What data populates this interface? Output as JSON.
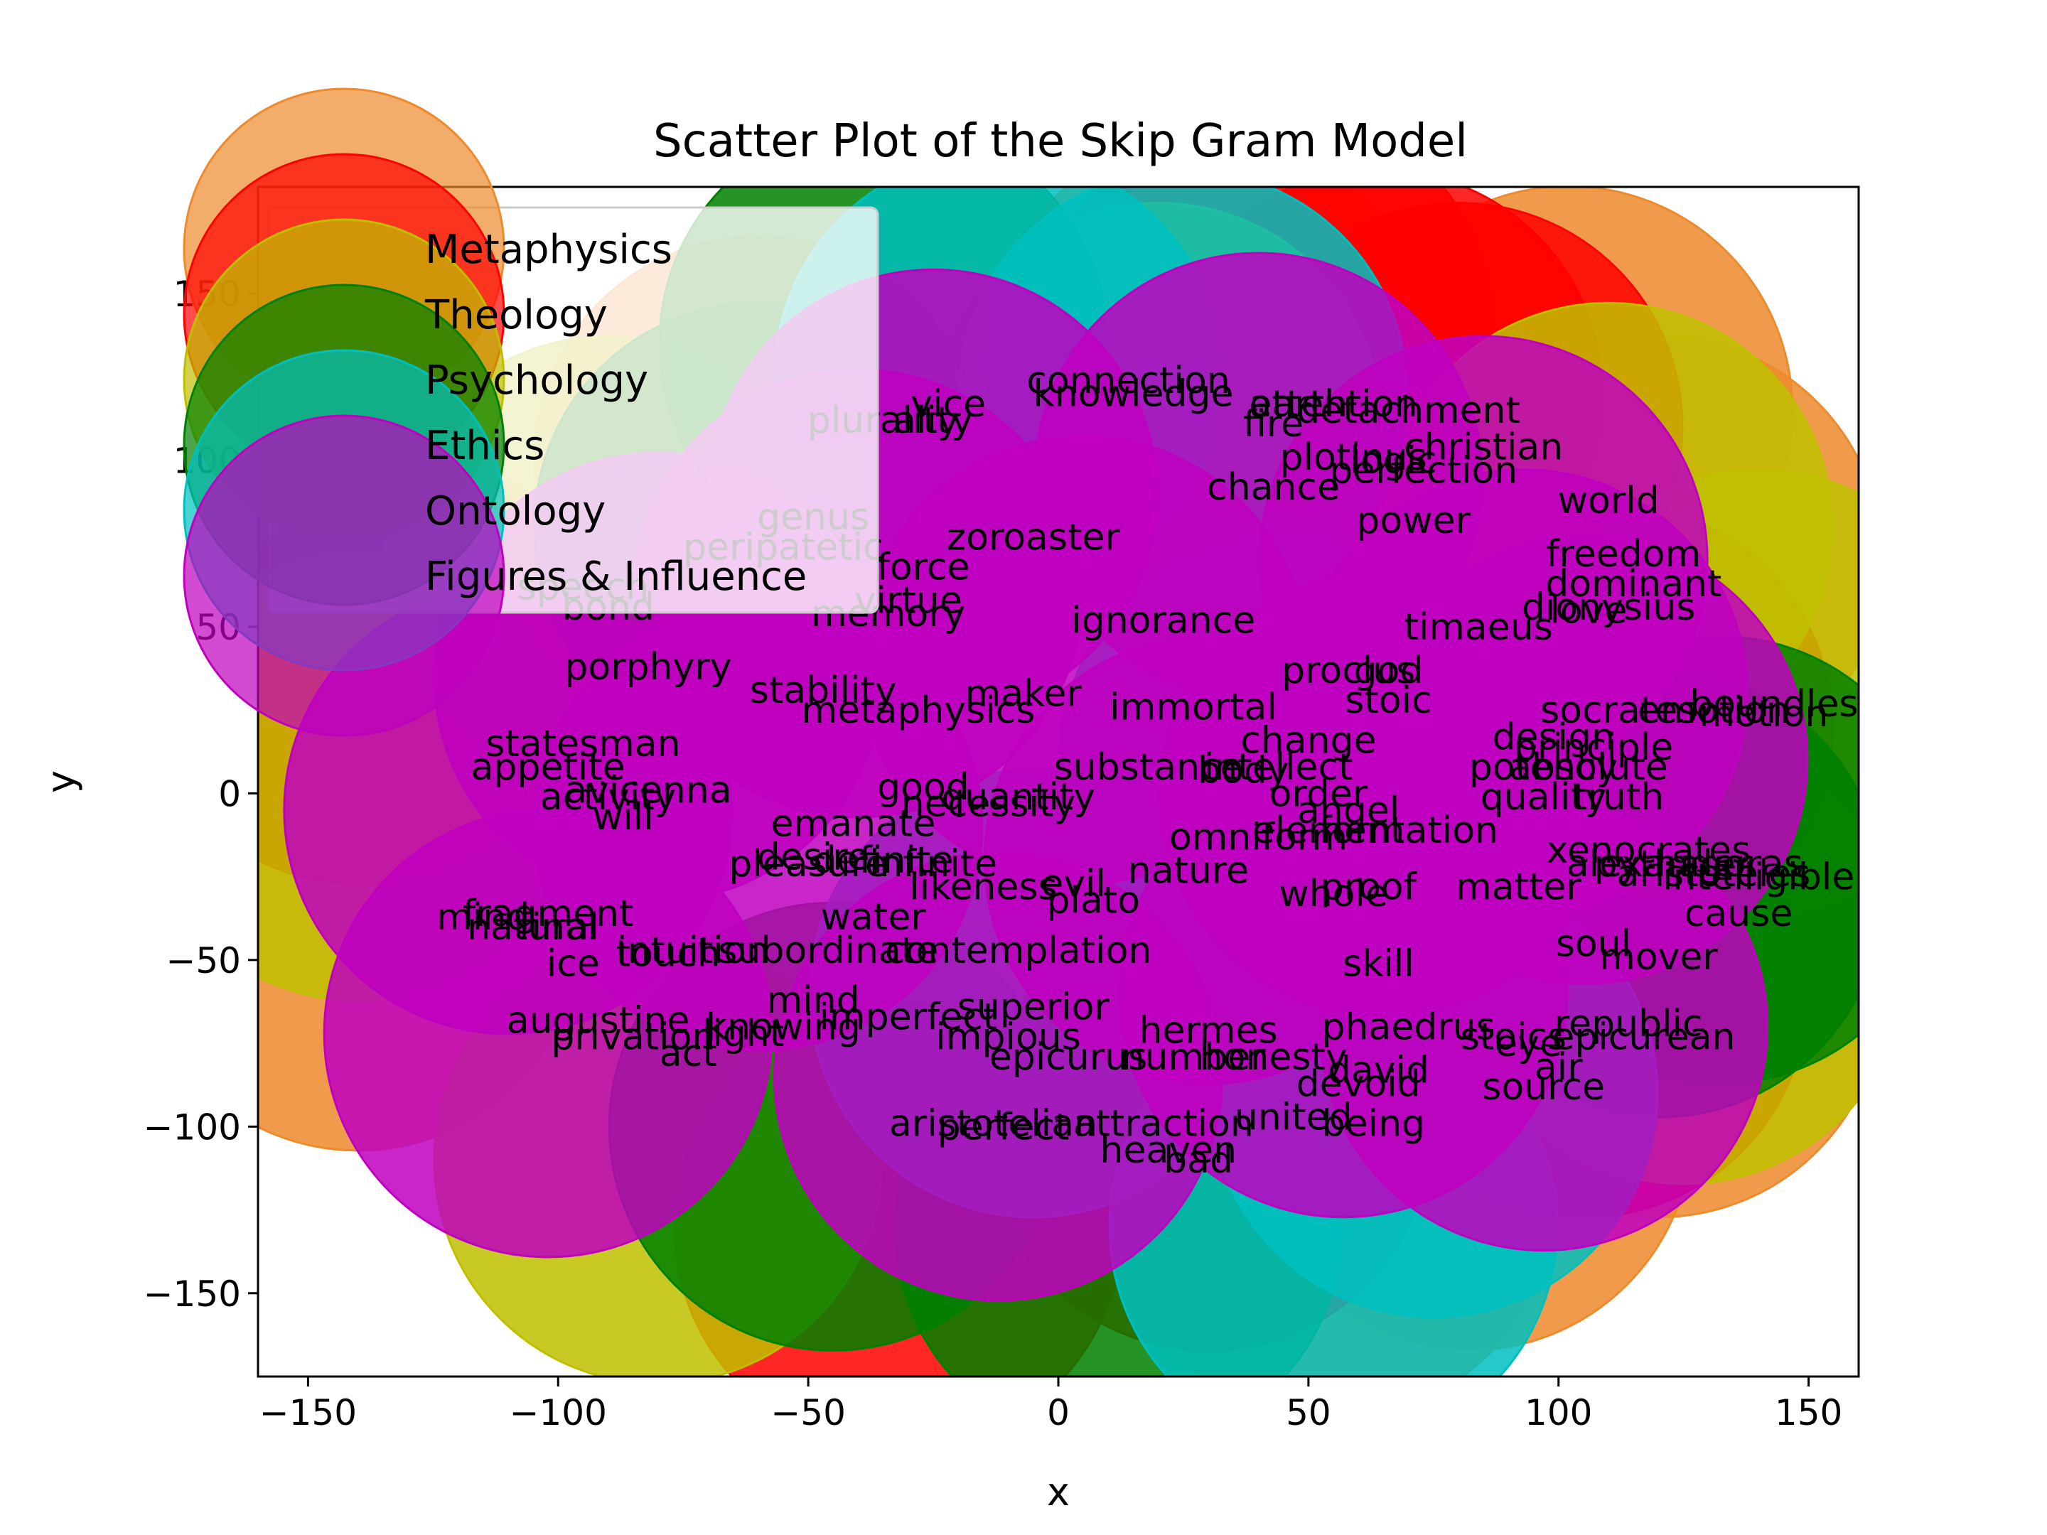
{
  "chart_data": {
    "type": "scatter",
    "title": "Scatter Plot of the Skip Gram Model",
    "xlabel": "x",
    "ylabel": "y",
    "xlim": [
      -160,
      160
    ],
    "ylim": [
      -175,
      182
    ],
    "xticks": [
      -150,
      -100,
      -50,
      0,
      50,
      100,
      150
    ],
    "yticks": [
      -150,
      -100,
      -50,
      0,
      50,
      100,
      150
    ],
    "xtick_labels": [
      "−150",
      "−100",
      "−50",
      "0",
      "50",
      "100",
      "150"
    ],
    "ytick_labels": [
      "−150",
      "−100",
      "−50",
      "0",
      "50",
      "100",
      "150"
    ],
    "grid": false,
    "legend_position": "upper-left",
    "series": [
      {
        "name": "Metaphysics",
        "color": "#ED8A2B",
        "points": [
          {
            "x": 82,
            "y": -100
          },
          {
            "x": 120,
            "y": -60
          },
          {
            "x": 125,
            "y": -15
          },
          {
            "x": 120,
            "y": 70
          },
          {
            "x": 102,
            "y": 115
          },
          {
            "x": 30,
            "y": 130
          },
          {
            "x": -140,
            "y": -40
          },
          {
            "x": -125,
            "y": 30
          },
          {
            "x": 55,
            "y": -120
          },
          {
            "x": -60,
            "y": 100
          }
        ]
      },
      {
        "name": "Theology",
        "color": "#FF0000",
        "points": [
          {
            "x": -32,
            "y": -130
          },
          {
            "x": 80,
            "y": 110
          },
          {
            "x": 42,
            "y": 140
          },
          {
            "x": 105,
            "y": -60
          },
          {
            "x": 110,
            "y": 20
          },
          {
            "x": -140,
            "y": 40
          },
          {
            "x": 30,
            "y": -100
          },
          {
            "x": 64,
            "y": 120
          }
        ]
      },
      {
        "name": "Psychology",
        "color": "#BFBF00",
        "points": [
          {
            "x": -80,
            "y": -110
          },
          {
            "x": 140,
            "y": 30
          },
          {
            "x": 125,
            "y": -50
          },
          {
            "x": -140,
            "y": 5
          },
          {
            "x": -90,
            "y": 70
          },
          {
            "x": 20,
            "y": 110
          },
          {
            "x": 110,
            "y": 80
          }
        ]
      },
      {
        "name": "Ethics",
        "color": "#008000",
        "points": [
          {
            "x": 12,
            "y": -130
          },
          {
            "x": 120,
            "y": -30
          },
          {
            "x": -35,
            "y": 135
          },
          {
            "x": -45,
            "y": -100
          },
          {
            "x": 132,
            "y": -20
          },
          {
            "x": -60,
            "y": 80
          }
        ]
      },
      {
        "name": "Ontology",
        "color": "#00BFBF",
        "points": [
          {
            "x": 55,
            "y": -130
          },
          {
            "x": 25,
            "y": 120
          },
          {
            "x": -12,
            "y": 125
          },
          {
            "x": 75,
            "y": -90
          },
          {
            "x": -5,
            "y": -60
          },
          {
            "x": 45,
            "y": 10
          }
        ]
      },
      {
        "name": "Figures & Influence",
        "color": "#BF00BF",
        "points": [
          {
            "x": -102,
            "y": -72
          },
          {
            "x": 40,
            "y": 95
          },
          {
            "x": 93,
            "y": 30
          },
          {
            "x": -25,
            "y": 90
          },
          {
            "x": -12,
            "y": -85
          },
          {
            "x": 57,
            "y": -60
          },
          {
            "x": -110,
            "y": -5
          },
          {
            "x": -80,
            "y": 35
          },
          {
            "x": 97,
            "y": -70
          },
          {
            "x": 85,
            "y": 70
          },
          {
            "x": 5,
            "y": 40
          },
          {
            "x": -60,
            "y": -10
          },
          {
            "x": 30,
            "y": -20
          },
          {
            "x": 105,
            "y": 10
          },
          {
            "x": -40,
            "y": 60
          },
          {
            "x": 65,
            "y": 0
          }
        ]
      }
    ],
    "labels": [
      {
        "text": "connection",
        "x": 14,
        "y": 124
      },
      {
        "text": "knowledge",
        "x": 15,
        "y": 120
      },
      {
        "text": "vice",
        "x": -22,
        "y": 117
      },
      {
        "text": "plurality",
        "x": -35,
        "y": 112
      },
      {
        "text": "ality",
        "x": -25,
        "y": 112
      },
      {
        "text": "earth",
        "x": 48,
        "y": 117
      },
      {
        "text": "fire",
        "x": 43,
        "y": 111
      },
      {
        "text": "attention",
        "x": 55,
        "y": 117
      },
      {
        "text": "detachment",
        "x": 70,
        "y": 115
      },
      {
        "text": "christian",
        "x": 85,
        "y": 104
      },
      {
        "text": "plotinus",
        "x": 59,
        "y": 101
      },
      {
        "text": "perfection",
        "x": 73,
        "y": 97
      },
      {
        "text": "logic",
        "x": 67,
        "y": 100
      },
      {
        "text": "chance",
        "x": 43,
        "y": 92
      },
      {
        "text": "world",
        "x": 110,
        "y": 88
      },
      {
        "text": "power",
        "x": 71,
        "y": 82
      },
      {
        "text": "genus",
        "x": -49,
        "y": 83
      },
      {
        "text": "peripatetic",
        "x": -55,
        "y": 74
      },
      {
        "text": "zoroaster",
        "x": -5,
        "y": 77
      },
      {
        "text": "force",
        "x": -27,
        "y": 68
      },
      {
        "text": "virtue",
        "x": -30,
        "y": 58
      },
      {
        "text": "freedom",
        "x": 113,
        "y": 72
      },
      {
        "text": "dominant",
        "x": 115,
        "y": 63
      },
      {
        "text": "dionysius",
        "x": 110,
        "y": 56
      },
      {
        "text": "love",
        "x": 106,
        "y": 55
      },
      {
        "text": "timaeus",
        "x": 84,
        "y": 50
      },
      {
        "text": "ignorance",
        "x": 21,
        "y": 52
      },
      {
        "text": "memory",
        "x": -34,
        "y": 54
      },
      {
        "text": "speech",
        "x": -95,
        "y": 62
      },
      {
        "text": "bond",
        "x": -90,
        "y": 56
      },
      {
        "text": "porphyry",
        "x": -82,
        "y": 38
      },
      {
        "text": "proclus",
        "x": 58,
        "y": 37
      },
      {
        "text": "god",
        "x": 66,
        "y": 37
      },
      {
        "text": "stoic",
        "x": 66,
        "y": 28
      },
      {
        "text": "stability",
        "x": -47,
        "y": 31
      },
      {
        "text": "maker",
        "x": -7,
        "y": 30
      },
      {
        "text": "metaphysics",
        "x": -28,
        "y": 25
      },
      {
        "text": "immortal",
        "x": 27,
        "y": 26
      },
      {
        "text": "socrates",
        "x": 112,
        "y": 25
      },
      {
        "text": "emotion",
        "x": 131,
        "y": 25
      },
      {
        "text": "boundless",
        "x": 145,
        "y": 27
      },
      {
        "text": "motion",
        "x": 141,
        "y": 24
      },
      {
        "text": "statesman",
        "x": -95,
        "y": 15
      },
      {
        "text": "change",
        "x": 50,
        "y": 16
      },
      {
        "text": "design",
        "x": 99,
        "y": 17
      },
      {
        "text": "principle",
        "x": 107,
        "y": 14
      },
      {
        "text": "appetite",
        "x": -102,
        "y": 8
      },
      {
        "text": "substance",
        "x": 18,
        "y": 8
      },
      {
        "text": "body",
        "x": 37,
        "y": 7
      },
      {
        "text": "intellect",
        "x": 44,
        "y": 8
      },
      {
        "text": "potency",
        "x": 97,
        "y": 8
      },
      {
        "text": "absolute",
        "x": 106,
        "y": 8
      },
      {
        "text": "avicenna",
        "x": -82,
        "y": 1
      },
      {
        "text": "activity",
        "x": -90,
        "y": -1
      },
      {
        "text": "good",
        "x": -27,
        "y": 2
      },
      {
        "text": "quantity",
        "x": -8,
        "y": -1
      },
      {
        "text": "necessity",
        "x": -14,
        "y": -3
      },
      {
        "text": "order",
        "x": 52,
        "y": 0
      },
      {
        "text": "quality",
        "x": 97,
        "y": -1
      },
      {
        "text": "truth",
        "x": 112,
        "y": -1
      },
      {
        "text": "will",
        "x": -87,
        "y": -7
      },
      {
        "text": "emanate",
        "x": -41,
        "y": -9
      },
      {
        "text": "angel",
        "x": 58,
        "y": -5
      },
      {
        "text": "element",
        "x": 54,
        "y": -11
      },
      {
        "text": "formation",
        "x": 70,
        "y": -11
      },
      {
        "text": "omniform",
        "x": 40,
        "y": -13
      },
      {
        "text": "xenocrates",
        "x": 118,
        "y": -17
      },
      {
        "text": "alexander",
        "x": 120,
        "y": -21
      },
      {
        "text": "desire",
        "x": -49,
        "y": -19
      },
      {
        "text": "pleasure",
        "x": -50,
        "y": -21
      },
      {
        "text": "definite",
        "x": -35,
        "y": -20
      },
      {
        "text": "infinite",
        "x": -25,
        "y": -21
      },
      {
        "text": "pythagoras",
        "x": 128,
        "y": -21
      },
      {
        "text": "aristoteles",
        "x": 131,
        "y": -24
      },
      {
        "text": "intelligible",
        "x": 140,
        "y": -25
      },
      {
        "text": "nature",
        "x": 26,
        "y": -23
      },
      {
        "text": "likeness",
        "x": -15,
        "y": -28
      },
      {
        "text": "evil",
        "x": 3,
        "y": -27
      },
      {
        "text": "plato",
        "x": 7,
        "y": -32
      },
      {
        "text": "whole",
        "x": 55,
        "y": -30
      },
      {
        "text": "proof",
        "x": 62,
        "y": -28
      },
      {
        "text": "matter",
        "x": 92,
        "y": -28
      },
      {
        "text": "cause",
        "x": 136,
        "y": -36
      },
      {
        "text": "fragment",
        "x": -102,
        "y": -36
      },
      {
        "text": "mind",
        "x": -115,
        "y": -37
      },
      {
        "text": "water",
        "x": -37,
        "y": -37
      },
      {
        "text": "natural",
        "x": -105,
        "y": -40
      },
      {
        "text": "final",
        "x": -100,
        "y": -40
      },
      {
        "text": "soul",
        "x": 107,
        "y": -45
      },
      {
        "text": "mover",
        "x": 120,
        "y": -49
      },
      {
        "text": "touch",
        "x": -78,
        "y": -48
      },
      {
        "text": "intuition",
        "x": -73,
        "y": -47
      },
      {
        "text": "subordinate",
        "x": -46,
        "y": -47
      },
      {
        "text": "contemplation",
        "x": -8,
        "y": -47
      },
      {
        "text": "ice",
        "x": -97,
        "y": -51
      },
      {
        "text": "skill",
        "x": 64,
        "y": -51
      },
      {
        "text": "mind",
        "x": -49,
        "y": -62
      },
      {
        "text": "superior",
        "x": -5,
        "y": -64
      },
      {
        "text": "augustine",
        "x": -92,
        "y": -68
      },
      {
        "text": "knowing",
        "x": -55,
        "y": -70
      },
      {
        "text": "imperfect",
        "x": -30,
        "y": -67
      },
      {
        "text": "republic",
        "x": 114,
        "y": -69
      },
      {
        "text": "hermes",
        "x": 30,
        "y": -71
      },
      {
        "text": "phaedrus",
        "x": 70,
        "y": -70
      },
      {
        "text": "stoics",
        "x": 91,
        "y": -73
      },
      {
        "text": "epicurean",
        "x": 117,
        "y": -73
      },
      {
        "text": "privation",
        "x": -85,
        "y": -73
      },
      {
        "text": "light",
        "x": -63,
        "y": -72
      },
      {
        "text": "impious",
        "x": -10,
        "y": -73
      },
      {
        "text": "eye",
        "x": 94,
        "y": -75
      },
      {
        "text": "act",
        "x": -74,
        "y": -78
      },
      {
        "text": "epicurus",
        "x": 2,
        "y": -79
      },
      {
        "text": "number",
        "x": 27,
        "y": -79
      },
      {
        "text": "honesty",
        "x": 43,
        "y": -79
      },
      {
        "text": "david",
        "x": 64,
        "y": -83
      },
      {
        "text": "air",
        "x": 100,
        "y": -82
      },
      {
        "text": "devoid",
        "x": 60,
        "y": -87
      },
      {
        "text": "source",
        "x": 97,
        "y": -88
      },
      {
        "text": "aristotelian",
        "x": -13,
        "y": -99
      },
      {
        "text": "perfect",
        "x": -11,
        "y": -100
      },
      {
        "text": "attraction",
        "x": 21,
        "y": -99
      },
      {
        "text": "united",
        "x": 47,
        "y": -97
      },
      {
        "text": "being",
        "x": 63,
        "y": -99
      },
      {
        "text": "heaven",
        "x": 22,
        "y": -107
      },
      {
        "text": "bad",
        "x": 28,
        "y": -110
      }
    ]
  }
}
